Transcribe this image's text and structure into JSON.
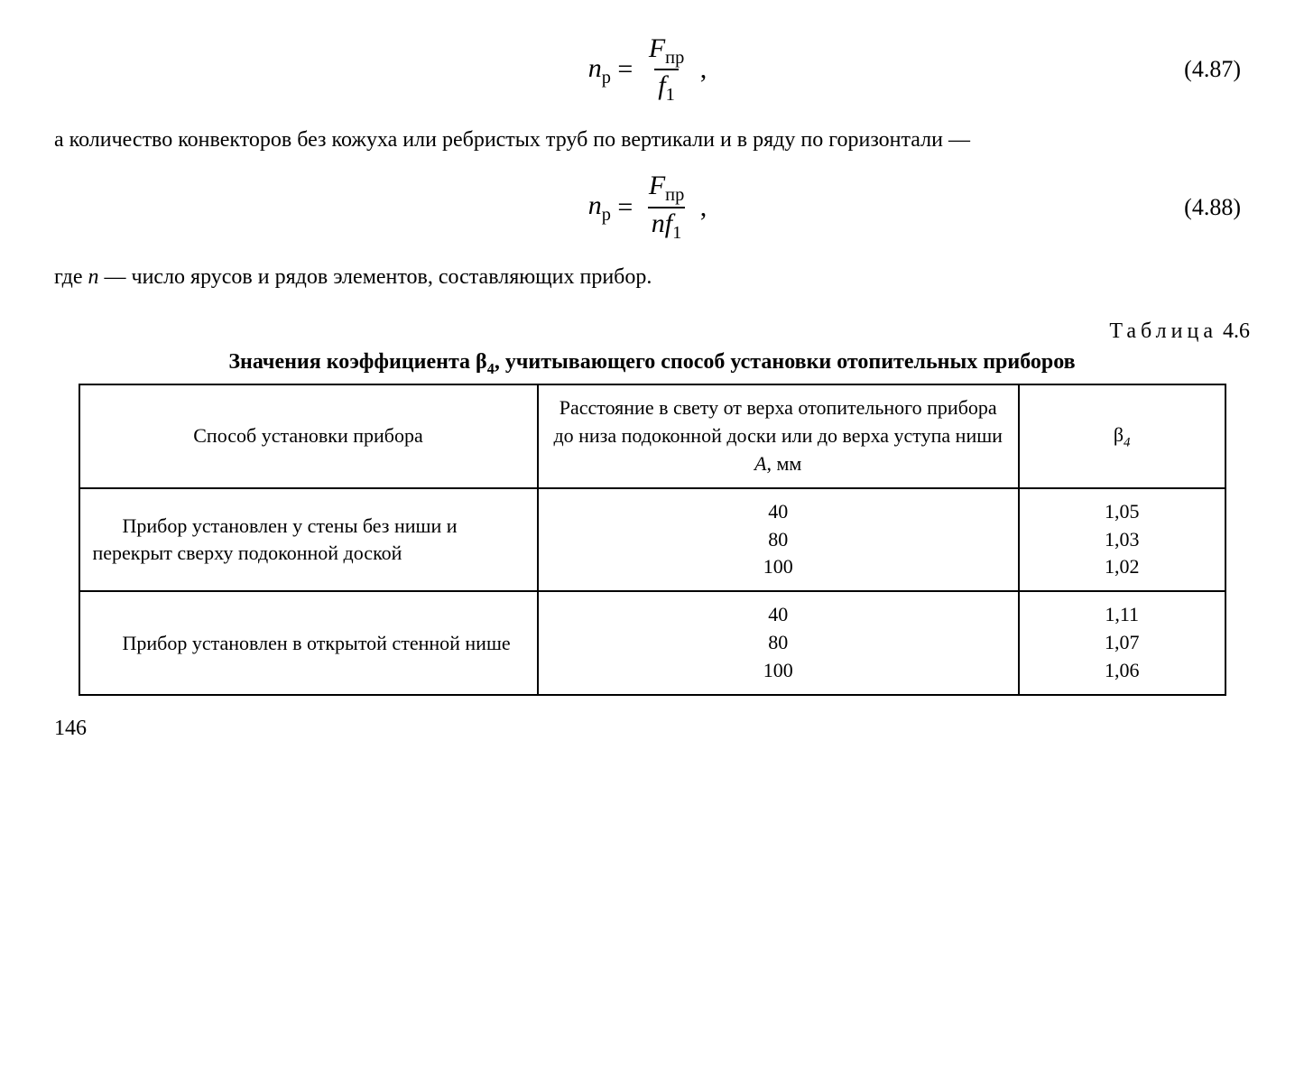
{
  "eq1": {
    "lhs_var": "n",
    "lhs_sub": "р",
    "num_var": "F",
    "num_sub": "пр",
    "den_var": "f",
    "den_sub": "1",
    "number": "(4.87)"
  },
  "para1": "а количество конвекторов без кожуха или ребристых труб по вер­тикали и в ряду по горизонтали —",
  "eq2": {
    "lhs_var": "n",
    "lhs_sub": "р",
    "num_var": "F",
    "num_sub": "пр",
    "den_pre": "n",
    "den_var": "f",
    "den_sub": "1",
    "number": "(4.88)"
  },
  "para2_pre": "где ",
  "para2_var": "n",
  "para2_post": " — число ярусов и рядов элементов, составляющих прибор.",
  "table_label_word": "Таблица",
  "table_label_num": " 4.6",
  "table_title_pre": "Значения коэффициента  β",
  "table_title_sub": "4",
  "table_title_post": ", учитывающего способ установки отопительных приборов",
  "table": {
    "head_col1": "Способ установки прибора",
    "head_col2_pre": "Расстояние в свету от верха отопительного прибора до низа подоконной доски или до верха уступа ниши ",
    "head_col2_var": "A",
    "head_col2_post": ", мм",
    "head_col3_sym": "β",
    "head_col3_sub": "4",
    "rows": [
      {
        "method": "Прибор установлен у стены без ниши и перекрыт сверху подоконной доской",
        "dist": [
          "40",
          "80",
          "100"
        ],
        "beta": [
          "1,05",
          "1,03",
          "1,02"
        ]
      },
      {
        "method": "Прибор установлен в открытой стенной нише",
        "dist": [
          "40",
          "80",
          "100"
        ],
        "beta": [
          "1,11",
          "1,07",
          "1,06"
        ]
      }
    ]
  },
  "pagenum": "146"
}
